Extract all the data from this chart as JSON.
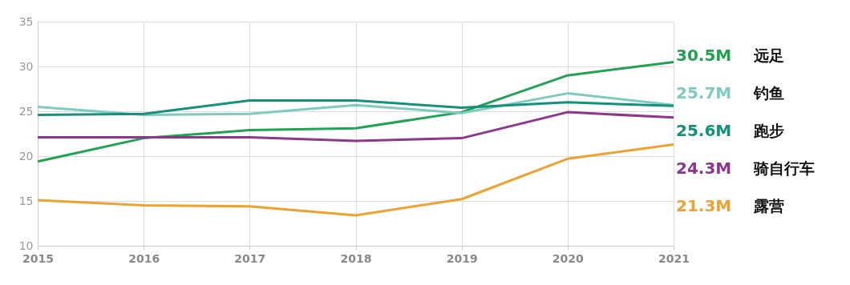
{
  "chart_data": {
    "type": "line",
    "x": [
      2015,
      2016,
      2017,
      2018,
      2019,
      2020,
      2021
    ],
    "xlim": [
      2015,
      2021
    ],
    "xticks": [
      2015,
      2016,
      2017,
      2018,
      2019,
      2020,
      2021
    ],
    "ylim": [
      10,
      35
    ],
    "yticks": [
      10,
      15,
      20,
      25,
      30,
      35
    ],
    "grid": true,
    "legend": "right",
    "marker": "none",
    "line_style": "solid",
    "annotations": [
      "30.5M",
      "25.7M",
      "25.6M",
      "24.3M",
      "21.3M"
    ],
    "series": [
      {
        "name": "远足",
        "color": "#20a350",
        "values": [
          19.4,
          22.0,
          22.9,
          23.1,
          24.9,
          29.0,
          30.5
        ]
      },
      {
        "name": "钓鱼",
        "color": "#7ccbc0",
        "values": [
          25.5,
          24.6,
          24.7,
          25.7,
          24.8,
          27.0,
          25.7
        ]
      },
      {
        "name": "跑步",
        "color": "#13917a",
        "values": [
          24.6,
          24.7,
          26.2,
          26.2,
          25.4,
          26.0,
          25.6
        ]
      },
      {
        "name": "骑自行车",
        "color": "#8e3590",
        "values": [
          22.1,
          22.1,
          22.1,
          21.7,
          22.0,
          24.9,
          24.3
        ]
      },
      {
        "name": "露营",
        "color": "#eda230",
        "values": [
          15.1,
          14.5,
          14.4,
          13.4,
          15.2,
          19.7,
          21.3
        ]
      }
    ]
  }
}
